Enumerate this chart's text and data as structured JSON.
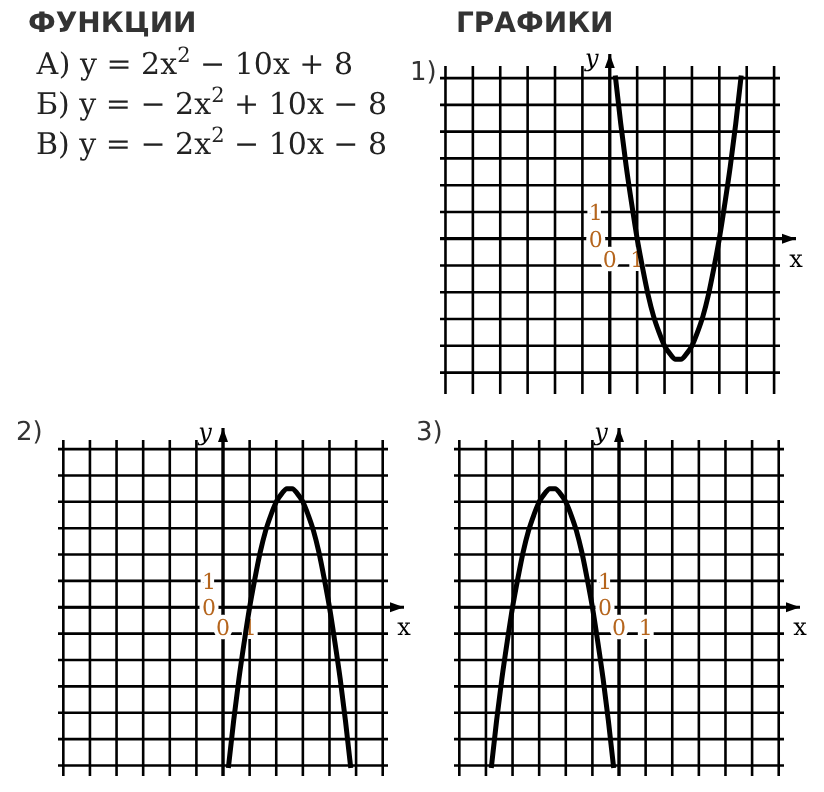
{
  "chart_data": [
    {
      "type": "other",
      "title": "ФУНКЦИИ",
      "annotations": [
        "А) y = 2x$^{2}$ − 10x + 8",
        "Б) y = − 2x$^{2}$ + 10x − 8",
        "В) y = − 2x$^{2}$ − 10x − 8"
      ]
    },
    {
      "type": "other",
      "title": "ГРАФИКИ"
    },
    {
      "type": "line",
      "title": "1)",
      "xlabel": "x",
      "ylabel": "y",
      "grid": true,
      "xlim": [
        -6.2,
        6.8
      ],
      "ylim": [
        -5.8,
        6.9
      ],
      "xticks": [
        {
          "value": -6,
          "label": null
        },
        {
          "value": -5,
          "label": null
        },
        {
          "value": -4,
          "label": null
        },
        {
          "value": -3,
          "label": null
        },
        {
          "value": -2,
          "label": null
        },
        {
          "value": -1,
          "label": null
        },
        {
          "value": 0,
          "label": "0"
        },
        {
          "value": 1,
          "label": "1"
        },
        {
          "value": 2,
          "label": null
        },
        {
          "value": 3,
          "label": null
        },
        {
          "value": 4,
          "label": null
        },
        {
          "value": 5,
          "label": null
        },
        {
          "value": 6,
          "label": null
        }
      ],
      "yticks": [
        {
          "value": -5,
          "label": null
        },
        {
          "value": -4,
          "label": null
        },
        {
          "value": -3,
          "label": null
        },
        {
          "value": -2,
          "label": null
        },
        {
          "value": -1,
          "label": null
        },
        {
          "value": 0,
          "label": "0"
        },
        {
          "value": 1,
          "label": "1"
        },
        {
          "value": 2,
          "label": null
        },
        {
          "value": 3,
          "label": null
        },
        {
          "value": 4,
          "label": null
        },
        {
          "value": 5,
          "label": null
        },
        {
          "value": 6,
          "label": null
        }
      ],
      "x": [
        0.2,
        0.4,
        0.6,
        0.8,
        1.0,
        1.2,
        1.4,
        1.6,
        1.8,
        2.0,
        2.2,
        2.4,
        2.5,
        2.6,
        2.8,
        3.0,
        3.2,
        3.4,
        3.6,
        3.8,
        4.0,
        4.2,
        4.4,
        4.6,
        4.8
      ],
      "series": [
        {
          "color": "#000000",
          "values": [
            6.1,
            4.3,
            2.7,
            1.3,
            0,
            -1.1,
            -2.1,
            -2.9,
            -3.5,
            -4,
            -4.3,
            -4.5,
            -4.5,
            -4.5,
            -4.3,
            -4,
            -3.5,
            -2.9,
            -2.1,
            -1.1,
            0,
            1.3,
            2.7,
            4.3,
            6.1
          ]
        }
      ]
    },
    {
      "type": "line",
      "title": "2)",
      "xlabel": "x",
      "ylabel": "y",
      "grid": true,
      "xlim": [
        -6.2,
        6.8
      ],
      "ylim": [
        -6.4,
        6.8
      ],
      "xticks": [
        {
          "value": -6,
          "label": null
        },
        {
          "value": -5,
          "label": null
        },
        {
          "value": -4,
          "label": null
        },
        {
          "value": -3,
          "label": null
        },
        {
          "value": -2,
          "label": null
        },
        {
          "value": -1,
          "label": null
        },
        {
          "value": 0,
          "label": "0"
        },
        {
          "value": 1,
          "label": "1"
        },
        {
          "value": 2,
          "label": null
        },
        {
          "value": 3,
          "label": null
        },
        {
          "value": 4,
          "label": null
        },
        {
          "value": 5,
          "label": null
        },
        {
          "value": 6,
          "label": null
        }
      ],
      "yticks": [
        {
          "value": -6,
          "label": null
        },
        {
          "value": -5,
          "label": null
        },
        {
          "value": -4,
          "label": null
        },
        {
          "value": -3,
          "label": null
        },
        {
          "value": -2,
          "label": null
        },
        {
          "value": -1,
          "label": null
        },
        {
          "value": 0,
          "label": "0"
        },
        {
          "value": 1,
          "label": "1"
        },
        {
          "value": 2,
          "label": null
        },
        {
          "value": 3,
          "label": null
        },
        {
          "value": 4,
          "label": null
        },
        {
          "value": 5,
          "label": null
        },
        {
          "value": 6,
          "label": null
        }
      ],
      "x": [
        0.2,
        0.4,
        0.6,
        0.8,
        1.0,
        1.2,
        1.4,
        1.6,
        1.8,
        2.0,
        2.2,
        2.4,
        2.5,
        2.6,
        2.8,
        3.0,
        3.2,
        3.4,
        3.6,
        3.8,
        4.0,
        4.2,
        4.4,
        4.6,
        4.8
      ],
      "series": [
        {
          "color": "#000000",
          "values": [
            -6.1,
            -4.3,
            -2.7,
            -1.3,
            0,
            1.1,
            2.1,
            2.9,
            3.5,
            4,
            4.3,
            4.5,
            4.5,
            4.5,
            4.3,
            4,
            3.5,
            2.9,
            2.1,
            1.1,
            0,
            -1.3,
            -2.7,
            -4.3,
            -6.1
          ]
        }
      ]
    },
    {
      "type": "line",
      "title": "3)",
      "xlabel": "x",
      "ylabel": "y",
      "grid": true,
      "xlim": [
        -6.2,
        6.8
      ],
      "ylim": [
        -6.4,
        6.8
      ],
      "xticks": [
        {
          "value": -6,
          "label": null
        },
        {
          "value": -5,
          "label": null
        },
        {
          "value": -4,
          "label": null
        },
        {
          "value": -3,
          "label": null
        },
        {
          "value": -2,
          "label": null
        },
        {
          "value": -1,
          "label": null
        },
        {
          "value": 0,
          "label": "0"
        },
        {
          "value": 1,
          "label": "1"
        },
        {
          "value": 2,
          "label": null
        },
        {
          "value": 3,
          "label": null
        },
        {
          "value": 4,
          "label": null
        },
        {
          "value": 5,
          "label": null
        },
        {
          "value": 6,
          "label": null
        }
      ],
      "yticks": [
        {
          "value": -6,
          "label": null
        },
        {
          "value": -5,
          "label": null
        },
        {
          "value": -4,
          "label": null
        },
        {
          "value": -3,
          "label": null
        },
        {
          "value": -2,
          "label": null
        },
        {
          "value": -1,
          "label": null
        },
        {
          "value": 0,
          "label": "0"
        },
        {
          "value": 1,
          "label": "1"
        },
        {
          "value": 2,
          "label": null
        },
        {
          "value": 3,
          "label": null
        },
        {
          "value": 4,
          "label": null
        },
        {
          "value": 5,
          "label": null
        },
        {
          "value": 6,
          "label": null
        }
      ],
      "x": [
        -4.8,
        -4.6,
        -4.4,
        -4.2,
        -4.0,
        -3.8,
        -3.6,
        -3.4,
        -3.2,
        -3.0,
        -2.8,
        -2.6,
        -2.5,
        -2.4,
        -2.2,
        -2.0,
        -1.8,
        -1.6,
        -1.4,
        -1.2,
        -1.0,
        -0.8,
        -0.6,
        -0.4,
        -0.2
      ],
      "series": [
        {
          "color": "#000000",
          "values": [
            -6.1,
            -4.3,
            -2.7,
            -1.3,
            0,
            1.1,
            2.1,
            2.9,
            3.5,
            4,
            4.3,
            4.5,
            4.5,
            4.5,
            4.3,
            4,
            3.5,
            2.9,
            2.1,
            1.1,
            0,
            -1.3,
            -2.7,
            -4.3,
            -6.1
          ]
        }
      ]
    }
  ]
}
